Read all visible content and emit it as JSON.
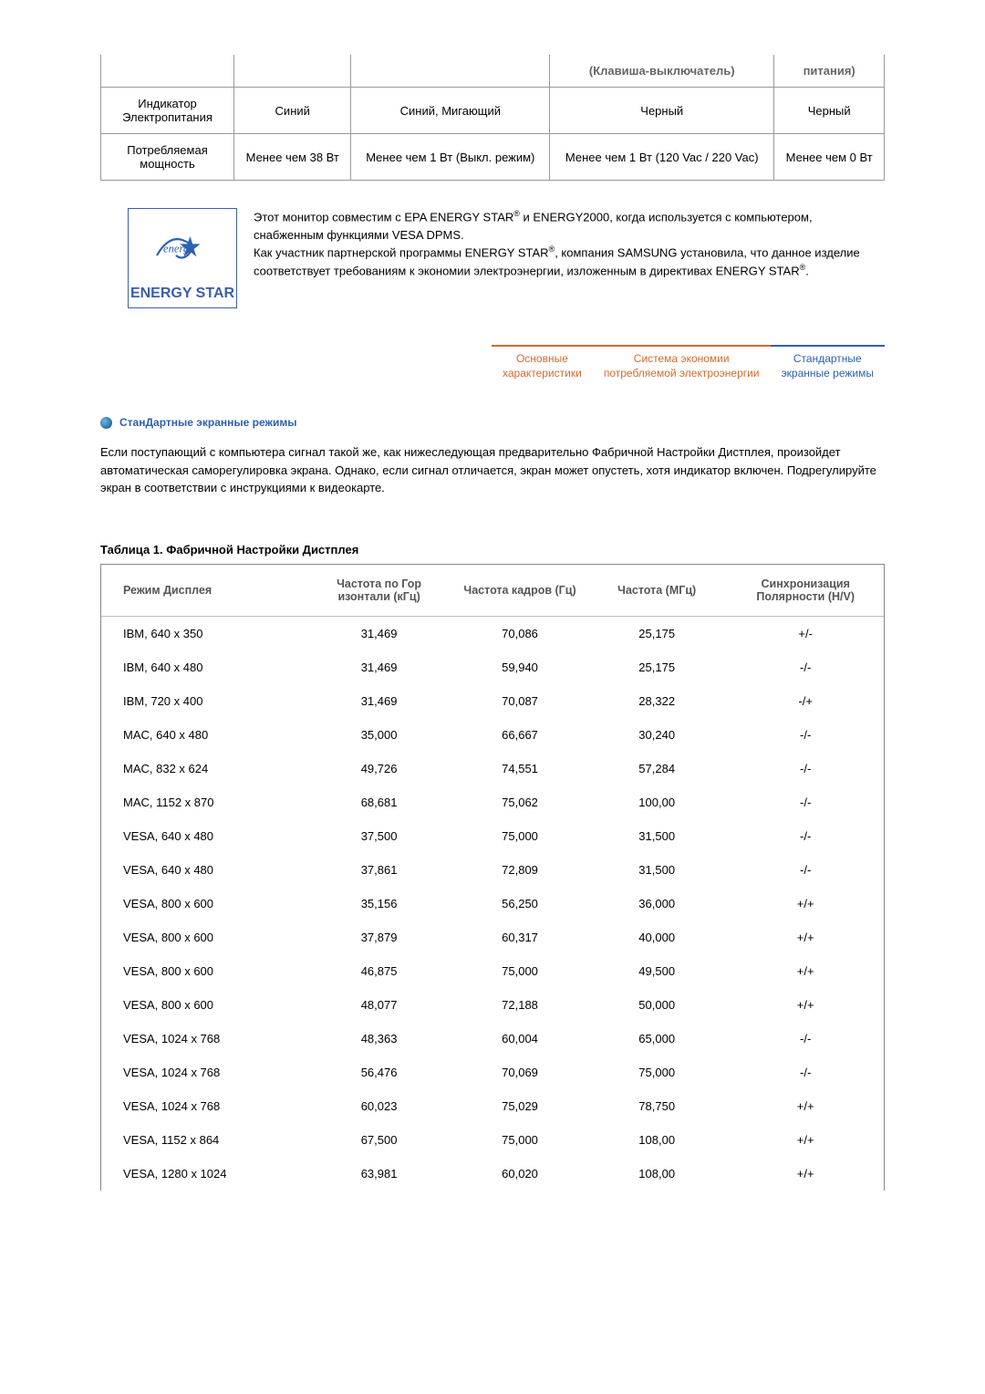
{
  "powerTable": {
    "headers": [
      "",
      "",
      "",
      "(Клавиша-выключатель)",
      "питания)"
    ],
    "rows": [
      [
        "Индикатор Электропитания",
        "Синий",
        "Синий, Мигающий",
        "Черный",
        "Черный"
      ],
      [
        "Потребляемая мощность",
        "Менее чем 38 Вт",
        "Менее чем 1 Вт (Выкл. режим)",
        "Менее чем 1 Вт (120 Vac / 220 Vac)",
        "Менее чем 0 Вт"
      ]
    ]
  },
  "energyLogo": {
    "label": "ENERGY STAR"
  },
  "energyText": {
    "p1a": "Этот монитор совместим с EPA ENERGY STAR",
    "p1b": " и ENERGY2000, когда используется с компьютером, снабженным функциями VESA DPMS.",
    "p2a": "Как участник партнерской программы ENERGY STAR",
    "p2b": ", компания SAMSUNG установила, что данное изделие соответствует требованиям к экономии электроэнергии, изложенным в директивах ENERGY STAR",
    "p2c": "."
  },
  "tabs": {
    "t1": {
      "line1": "Основные",
      "line2": "характеристики"
    },
    "t2": {
      "line1": "Система экономии",
      "line2": "потребляемой электроэнергии"
    },
    "t3": {
      "line1": "Стандартные",
      "line2": "экранные режимы"
    }
  },
  "section": {
    "title": "СтанДартные экранные режимы",
    "para": "Если поступающий с компьютера сигнал такой же, как нижеследующая предварительно Фабричной Настройки Дистплея, произойдет автоматическая саморегулировка экрана. Однако, если сигнал отличается, экран может опустеть, хотя индикатор включен. Подрегулируйте экран в соответствии с инструкциями к видеокарте."
  },
  "table1": {
    "title": "Таблица 1. Фабричной Настройки Дистплея",
    "headers": [
      "Режим Дисплея",
      "Частота по Гор изонтали (кГц)",
      "Частота кадров (Гц)",
      "Частота (МГц)",
      "Синхронизация Полярности (H/V)"
    ],
    "rows": [
      [
        "IBM, 640 x 350",
        "31,469",
        "70,086",
        "25,175",
        "+/-"
      ],
      [
        "IBM, 640 x 480",
        "31,469",
        "59,940",
        "25,175",
        "-/-"
      ],
      [
        "IBM, 720 x 400",
        "31,469",
        "70,087",
        "28,322",
        "-/+"
      ],
      [
        "MAC, 640 x 480",
        "35,000",
        "66,667",
        "30,240",
        "-/-"
      ],
      [
        "MAC, 832 x 624",
        "49,726",
        "74,551",
        "57,284",
        "-/-"
      ],
      [
        "MAC, 1152 x 870",
        "68,681",
        "75,062",
        "100,00",
        "-/-"
      ],
      [
        "VESA, 640 x 480",
        "37,500",
        "75,000",
        "31,500",
        "-/-"
      ],
      [
        "VESA, 640 x 480",
        "37,861",
        "72,809",
        "31,500",
        "-/-"
      ],
      [
        "VESA, 800 x 600",
        "35,156",
        "56,250",
        "36,000",
        "+/+"
      ],
      [
        "VESA, 800 x 600",
        "37,879",
        "60,317",
        "40,000",
        "+/+"
      ],
      [
        "VESA, 800 x 600",
        "46,875",
        "75,000",
        "49,500",
        "+/+"
      ],
      [
        "VESA, 800 x 600",
        "48,077",
        "72,188",
        "50,000",
        "+/+"
      ],
      [
        "VESA, 1024 x 768",
        "48,363",
        "60,004",
        "65,000",
        "-/-"
      ],
      [
        "VESA, 1024 x 768",
        "56,476",
        "70,069",
        "75,000",
        "-/-"
      ],
      [
        "VESA, 1024 x 768",
        "60,023",
        "75,029",
        "78,750",
        "+/+"
      ],
      [
        "VESA, 1152 x 864",
        "67,500",
        "75,000",
        "108,00",
        "+/+"
      ],
      [
        "VESA, 1280 x 1024",
        "63,981",
        "60,020",
        "108,00",
        "+/+"
      ]
    ]
  }
}
